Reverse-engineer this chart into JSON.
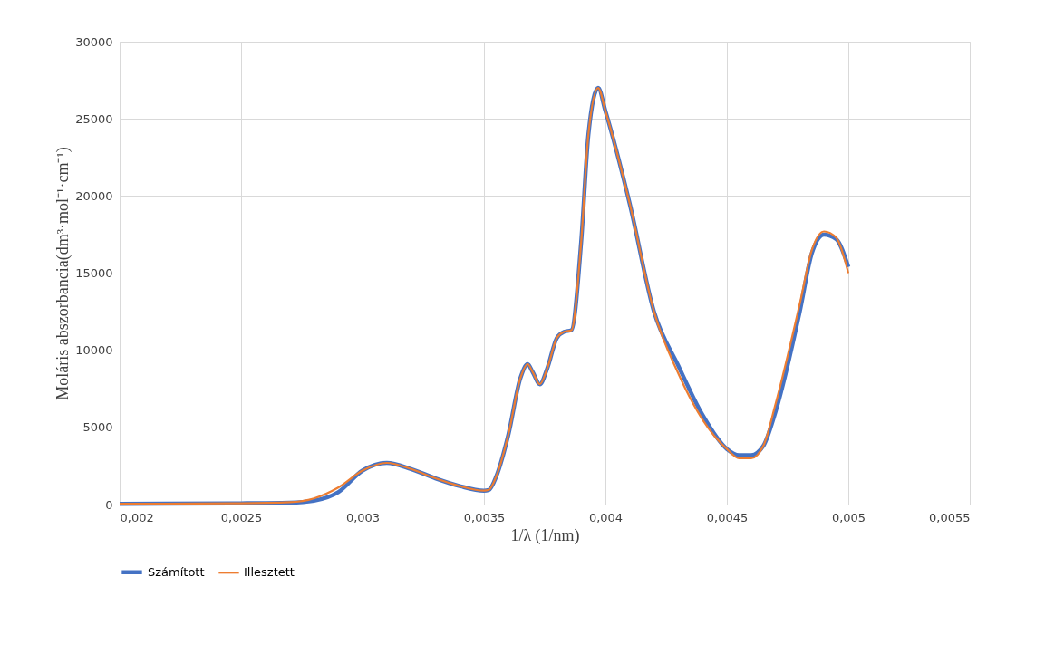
{
  "chart_data": {
    "type": "line",
    "xlabel": "1/λ (1/nm)",
    "ylabel": "Moláris abszorbancia(dm³·mol⁻¹·cm⁻¹)",
    "xlim": [
      0.002,
      0.0055
    ],
    "xticks": [
      {
        "value": 0.002,
        "label": "0,002"
      },
      {
        "value": 0.0025,
        "label": "0,0025"
      },
      {
        "value": 0.003,
        "label": "0,003"
      },
      {
        "value": 0.0035,
        "label": "0,0035"
      },
      {
        "value": 0.004,
        "label": "0,004"
      },
      {
        "value": 0.0045,
        "label": "0,0045"
      },
      {
        "value": 0.005,
        "label": "0,005"
      },
      {
        "value": 0.0055,
        "label": "0,0055"
      }
    ],
    "ylim": [
      0,
      30000
    ],
    "yticks": [
      0,
      5000,
      10000,
      15000,
      20000,
      25000,
      30000
    ],
    "grid": true,
    "legend": "bottom",
    "marker": "none",
    "line_style": "solid",
    "series": [
      {
        "name": "Számított",
        "color": "#4472c4",
        "x": [
          0.002,
          0.0025,
          0.0027,
          0.0028,
          0.0029,
          0.003,
          0.0031,
          0.0032,
          0.0033,
          0.0034,
          0.0035,
          0.00352,
          0.00355,
          0.0036,
          0.00365,
          0.00368,
          0.0037,
          0.00373,
          0.00376,
          0.0038,
          0.00383,
          0.00386,
          0.0039,
          0.00393,
          0.00397,
          0.004,
          0.0041,
          0.0042,
          0.0043,
          0.0044,
          0.0045,
          0.00455,
          0.0046,
          0.00465,
          0.0047,
          0.0048,
          0.00485,
          0.0049,
          0.00495,
          0.005
        ],
        "values": [
          50,
          80,
          120,
          250,
          800,
          2200,
          2700,
          2300,
          1700,
          1200,
          900,
          950,
          1800,
          4500,
          8200,
          9100,
          8600,
          7800,
          8800,
          10800,
          11200,
          11300,
          17000,
          24000,
          27000,
          25500,
          19500,
          12500,
          9000,
          5800,
          3600,
          3200,
          3200,
          3800,
          6000,
          12500,
          16300,
          17500,
          17200,
          15400
        ]
      },
      {
        "name": "Illesztett",
        "color": "#ed7d31",
        "x": [
          0.002,
          0.0025,
          0.0027,
          0.0028,
          0.0029,
          0.003,
          0.0031,
          0.0032,
          0.0033,
          0.0034,
          0.0035,
          0.00352,
          0.00355,
          0.0036,
          0.00365,
          0.00368,
          0.0037,
          0.00373,
          0.00376,
          0.0038,
          0.00383,
          0.00386,
          0.0039,
          0.00393,
          0.00397,
          0.004,
          0.0041,
          0.0042,
          0.0043,
          0.0044,
          0.0045,
          0.00455,
          0.0046,
          0.00465,
          0.0047,
          0.0048,
          0.00485,
          0.0049,
          0.00495,
          0.005
        ],
        "values": [
          50,
          80,
          150,
          400,
          1100,
          2200,
          2700,
          2300,
          1700,
          1200,
          900,
          950,
          1800,
          4500,
          8200,
          9100,
          8600,
          7800,
          8800,
          10800,
          11200,
          11300,
          17000,
          24000,
          27000,
          25500,
          19500,
          12500,
          8500,
          5500,
          3600,
          3000,
          3000,
          3800,
          6500,
          13000,
          16500,
          17700,
          17300,
          15000
        ]
      }
    ]
  }
}
